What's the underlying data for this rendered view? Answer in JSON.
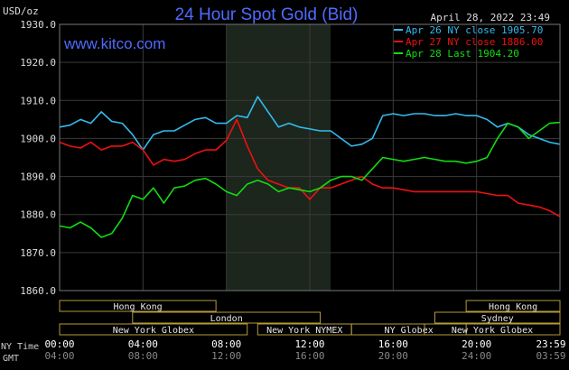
{
  "chart_data": {
    "type": "line",
    "title": "24 Hour Spot Gold (Bid)",
    "unit_label": "USD/oz",
    "timestamp": "April 28, 2022 23:49",
    "site": "www.kitco.com",
    "ylim": [
      1860,
      1930
    ],
    "y_ticks": [
      "1930.0",
      "1920.0",
      "1910.0",
      "1900.0",
      "1890.0",
      "1880.0",
      "1870.0",
      "1860.0"
    ],
    "x_ticks_ny": [
      "00:00",
      "04:00",
      "08:00",
      "12:00",
      "16:00",
      "20:00",
      "23:59"
    ],
    "x_ticks_gmt": [
      "04:00",
      "08:00",
      "12:00",
      "16:00",
      "20:00",
      "24:00",
      "03:59"
    ],
    "row_label_ny": "NY Time",
    "row_label_gmt": "GMT",
    "colors": {
      "apr26": "#33bbee",
      "apr27": "#ee1111",
      "apr28": "#11dd11"
    },
    "series": [
      {
        "name": "Apr 26 NY close 1905.70",
        "x": [
          0,
          0.5,
          1,
          1.5,
          2,
          2.5,
          3,
          3.5,
          4,
          4.5,
          5,
          5.5,
          6,
          6.5,
          7,
          7.5,
          8,
          8.5,
          9,
          9.5,
          10,
          10.5,
          11,
          11.5,
          12,
          12.5,
          13,
          13.5,
          14,
          14.5,
          15,
          15.5,
          16,
          16.5,
          17,
          17.5,
          18,
          18.5,
          19,
          19.5,
          20,
          20.5,
          21,
          21.5,
          22,
          22.5,
          23,
          23.5,
          23.98
        ],
        "values": [
          1903,
          1903.5,
          1905,
          1904,
          1907,
          1904.5,
          1904,
          1901,
          1897,
          1901,
          1902,
          1902,
          1903.5,
          1905,
          1905.5,
          1904,
          1904,
          1906,
          1905.5,
          1911,
          1907,
          1903,
          1904,
          1903,
          1902.5,
          1902,
          1902,
          1900,
          1898,
          1898.5,
          1900,
          1906,
          1906.5,
          1906,
          1906.5,
          1906.5,
          1906,
          1906,
          1906.5,
          1906,
          1906,
          1905,
          1903,
          1904,
          1903,
          1901,
          1900,
          1899,
          1898.5
        ]
      },
      {
        "name": "Apr 27 NY close 1886.00",
        "x": [
          0,
          0.5,
          1,
          1.5,
          2,
          2.5,
          3,
          3.5,
          4,
          4.5,
          5,
          5.5,
          6,
          6.5,
          7,
          7.5,
          8,
          8.5,
          9,
          9.5,
          10,
          10.5,
          11,
          11.5,
          12,
          12.5,
          13,
          13.5,
          14,
          14.5,
          15,
          15.5,
          16,
          16.5,
          17,
          17.5,
          18,
          18.5,
          19,
          19.5,
          20,
          20.5,
          21,
          21.5,
          22,
          22.5,
          23,
          23.5,
          23.98
        ],
        "values": [
          1899,
          1898,
          1897.5,
          1899,
          1897,
          1898,
          1898,
          1899,
          1897,
          1893,
          1894.5,
          1894,
          1894.5,
          1896,
          1897,
          1897,
          1899.5,
          1905,
          1898,
          1892,
          1889,
          1888,
          1887,
          1887,
          1884,
          1887,
          1887,
          1888,
          1889,
          1890,
          1888,
          1887,
          1887,
          1886.5,
          1886,
          1886,
          1886,
          1886,
          1886,
          1886,
          1886,
          1885.5,
          1885,
          1885,
          1883,
          1882.5,
          1882,
          1881,
          1879.5
        ]
      },
      {
        "name": "Apr 28 Last 1904.20",
        "x": [
          0,
          0.5,
          1,
          1.5,
          2,
          2.5,
          3,
          3.5,
          4,
          4.5,
          5,
          5.5,
          6,
          6.5,
          7,
          7.5,
          8,
          8.5,
          9,
          9.5,
          10,
          10.5,
          11,
          11.5,
          12,
          12.5,
          13,
          13.5,
          14,
          14.5,
          15,
          15.5,
          16,
          16.5,
          17,
          17.5,
          18,
          18.5,
          19,
          19.5,
          20,
          20.5,
          21,
          21.5,
          22,
          22.5,
          23,
          23.5,
          23.98
        ],
        "values": [
          1877,
          1876.5,
          1878,
          1876.5,
          1874,
          1875,
          1879,
          1885,
          1884,
          1887,
          1883,
          1887,
          1887.5,
          1889,
          1889.5,
          1888,
          1886,
          1885,
          1888,
          1889,
          1888,
          1886,
          1887,
          1886.5,
          1886,
          1887,
          1889,
          1890,
          1890,
          1889,
          1892,
          1895,
          1894.5,
          1894,
          1894.5,
          1895,
          1894.5,
          1894,
          1894,
          1893.5,
          1894,
          1895,
          1900,
          1904,
          1903,
          1900,
          1902,
          1904,
          1904.2
        ]
      }
    ],
    "sessions": [
      {
        "name": "Hong Kong",
        "start": 0,
        "end": 7.5,
        "row": 0
      },
      {
        "name": "London",
        "start": 3.5,
        "end": 12.5,
        "row": 1
      },
      {
        "name": "New York Globex",
        "start": 0,
        "end": 9,
        "row": 2
      },
      {
        "name": "New York NYMEX",
        "start": 9.5,
        "end": 14,
        "row": 2
      },
      {
        "name": "NY Globex",
        "start": 14,
        "end": 19.5,
        "row": 2
      },
      {
        "name": "Hong Kong",
        "start": 19.5,
        "end": 24,
        "row": 0
      },
      {
        "name": "Sydney",
        "start": 18,
        "end": 24,
        "row": 1
      },
      {
        "name": "New York Globex",
        "start": 17.5,
        "end": 24,
        "row": 2
      }
    ],
    "highlight_range": [
      8,
      13
    ],
    "grid": true,
    "legend_position": "top-right"
  }
}
